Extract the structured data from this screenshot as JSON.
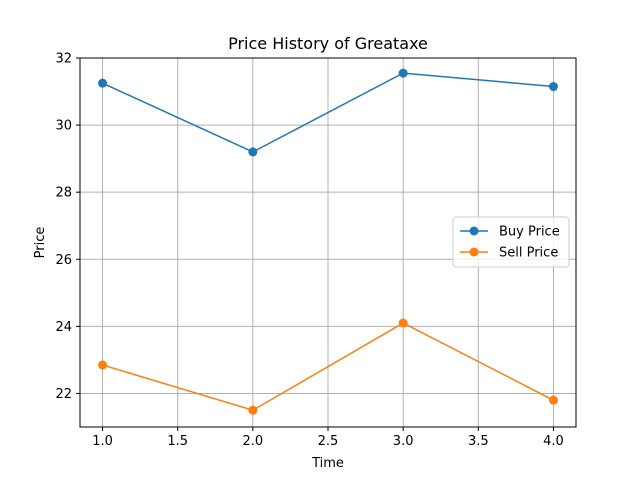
{
  "chart_data": {
    "type": "line",
    "title": "Price History of Greataxe",
    "xlabel": "Time",
    "ylabel": "Price",
    "xlim": [
      0.85,
      4.15
    ],
    "ylim": [
      21.0,
      32.0
    ],
    "xticks": [
      1.0,
      1.5,
      2.0,
      2.5,
      3.0,
      3.5,
      4.0
    ],
    "xtick_labels": [
      "1.0",
      "1.5",
      "2.0",
      "2.5",
      "3.0",
      "3.5",
      "4.0"
    ],
    "yticks": [
      22,
      24,
      26,
      28,
      30,
      32
    ],
    "ytick_labels": [
      "22",
      "24",
      "26",
      "28",
      "30",
      "32"
    ],
    "grid": true,
    "legend_position": "right",
    "x": [
      1,
      2,
      3,
      4
    ],
    "series": [
      {
        "name": "Buy Price",
        "color": "#1f77b4",
        "values": [
          31.25,
          29.2,
          31.55,
          31.15
        ]
      },
      {
        "name": "Sell Price",
        "color": "#ff7f0e",
        "values": [
          22.85,
          21.5,
          24.1,
          21.8
        ]
      }
    ]
  }
}
